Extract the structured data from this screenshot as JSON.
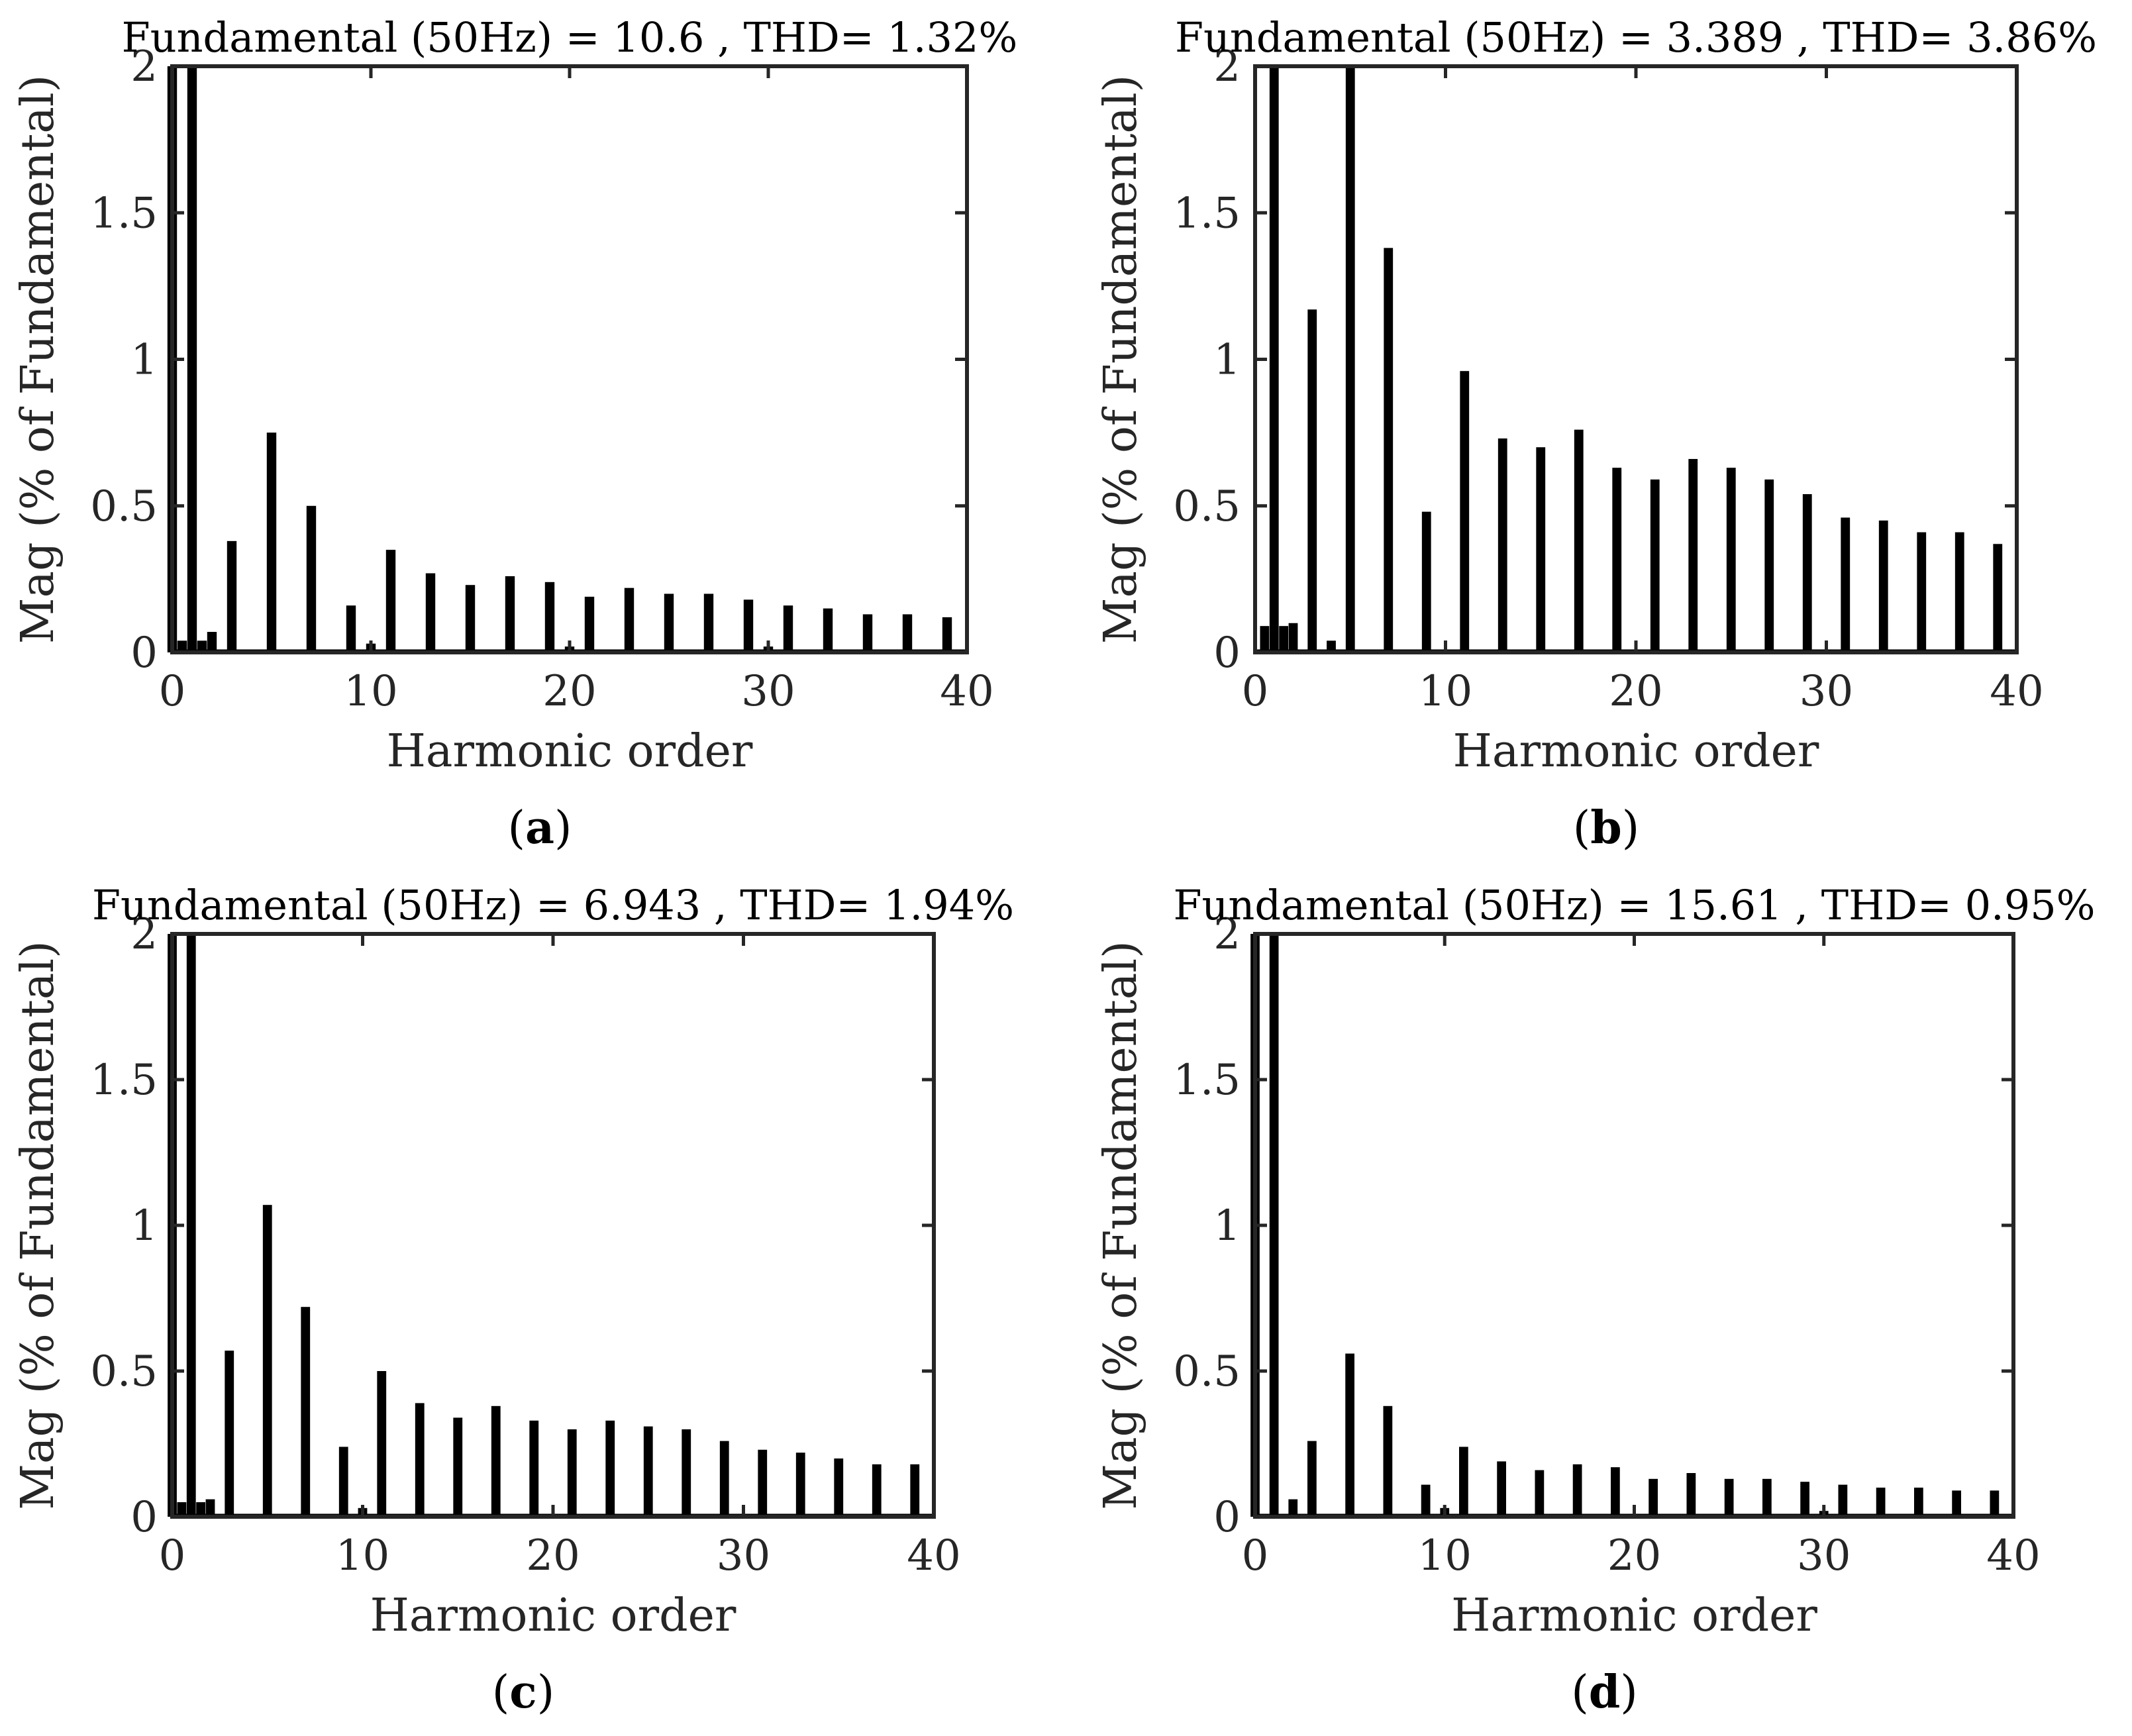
{
  "chart_data": [
    {
      "type": "bar",
      "title": "Fundamental (50Hz) = 10.6 , THD= 1.32%",
      "xlabel": "Harmonic order",
      "ylabel": "Mag (% of Fundamental)",
      "xlim": [
        0,
        40
      ],
      "ylim": [
        0,
        2
      ],
      "xticks": [
        "0",
        "10",
        "20",
        "30",
        "40"
      ],
      "yticks": [
        "0",
        "0.5",
        "1",
        "1.5",
        "2"
      ],
      "caption_open": "(",
      "caption_letter": "a",
      "caption_close": ")",
      "bar_color": "#000000",
      "x": [
        0,
        0.5,
        1,
        1.5,
        2,
        3,
        5,
        7,
        9,
        10,
        11,
        13,
        15,
        17,
        19,
        20,
        21,
        23,
        25,
        27,
        29,
        30,
        31,
        33,
        35,
        37,
        39
      ],
      "values": [
        2,
        0.04,
        2,
        0.04,
        0.07,
        0.38,
        0.75,
        0.5,
        0.16,
        0.03,
        0.35,
        0.27,
        0.23,
        0.26,
        0.24,
        0.02,
        0.19,
        0.22,
        0.2,
        0.2,
        0.18,
        0.02,
        0.16,
        0.15,
        0.13,
        0.13,
        0.12
      ]
    },
    {
      "type": "bar",
      "title": "Fundamental (50Hz) = 3.389 , THD= 3.86%",
      "xlabel": "Harmonic order",
      "ylabel": "Mag (% of Fundamental)",
      "xlim": [
        0,
        40
      ],
      "ylim": [
        0,
        2
      ],
      "xticks": [
        "0",
        "10",
        "20",
        "30",
        "40"
      ],
      "yticks": [
        "0",
        "0.5",
        "1",
        "1.5",
        "2"
      ],
      "caption_open": "(",
      "caption_letter": "b",
      "caption_close": ")",
      "bar_color": "#000000",
      "x": [
        0.5,
        1,
        1.5,
        2,
        3,
        4,
        5,
        7,
        9,
        11,
        13,
        15,
        17,
        19,
        21,
        23,
        25,
        27,
        29,
        31,
        33,
        35,
        37,
        39
      ],
      "values": [
        0.09,
        2,
        0.09,
        0.1,
        1.17,
        0.04,
        2,
        1.38,
        0.48,
        0.96,
        0.73,
        0.7,
        0.76,
        0.63,
        0.59,
        0.66,
        0.63,
        0.59,
        0.54,
        0.46,
        0.45,
        0.41,
        0.41,
        0.37
      ]
    },
    {
      "type": "bar",
      "title": "Fundamental (50Hz) = 6.943 , THD= 1.94%",
      "xlabel": "Harmonic order",
      "ylabel": "Mag (% of Fundamental)",
      "xlim": [
        0,
        40
      ],
      "ylim": [
        0,
        2
      ],
      "xticks": [
        "0",
        "10",
        "20",
        "30",
        "40"
      ],
      "yticks": [
        "0",
        "0.5",
        "1",
        "1.5",
        "2"
      ],
      "caption_open": "(",
      "caption_letter": "c",
      "caption_close": ")",
      "bar_color": "#000000",
      "x": [
        0,
        0.5,
        1,
        1.5,
        2,
        3,
        5,
        7,
        9,
        10,
        11,
        13,
        15,
        17,
        19,
        21,
        23,
        25,
        27,
        29,
        31,
        33,
        35,
        37,
        39
      ],
      "values": [
        2,
        0.05,
        2,
        0.05,
        0.06,
        0.57,
        1.07,
        0.72,
        0.24,
        0.03,
        0.5,
        0.39,
        0.34,
        0.38,
        0.33,
        0.3,
        0.33,
        0.31,
        0.3,
        0.26,
        0.23,
        0.22,
        0.2,
        0.18,
        0.18
      ]
    },
    {
      "type": "bar",
      "title": "Fundamental (50Hz) = 15.61 , THD= 0.95%",
      "xlabel": "Harmonic order",
      "ylabel": "Mag (% of Fundamental)",
      "xlim": [
        0,
        40
      ],
      "ylim": [
        0,
        2
      ],
      "xticks": [
        "0",
        "10",
        "20",
        "30",
        "40"
      ],
      "yticks": [
        "0",
        "0.5",
        "1",
        "1.5",
        "2"
      ],
      "caption_open": "(",
      "caption_letter": "d",
      "caption_close": ")",
      "bar_color": "#000000",
      "x": [
        0,
        1,
        2,
        3,
        5,
        7,
        9,
        10,
        11,
        13,
        15,
        17,
        19,
        21,
        23,
        25,
        27,
        29,
        30,
        31,
        33,
        35,
        37,
        39
      ],
      "values": [
        2,
        2,
        0.06,
        0.26,
        0.56,
        0.38,
        0.11,
        0.03,
        0.24,
        0.19,
        0.16,
        0.18,
        0.17,
        0.13,
        0.15,
        0.13,
        0.13,
        0.12,
        0.02,
        0.11,
        0.1,
        0.1,
        0.09,
        0.09
      ]
    }
  ]
}
